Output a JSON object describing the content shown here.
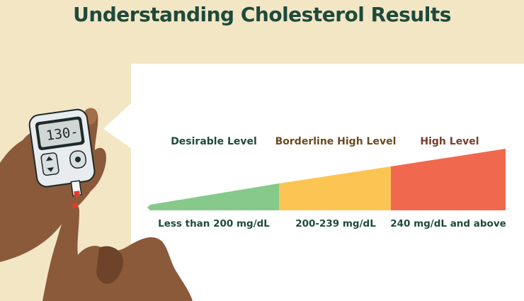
{
  "title": "Understanding Cholesterol Results",
  "meter": {
    "reading": "130-"
  },
  "levels": [
    {
      "label": "Desirable Level",
      "range": "Less than 200 mg/dL",
      "color": "#86c98b",
      "label_color": "#1e4a3c"
    },
    {
      "label": "Borderline High Level",
      "range": "200-239 mg/dL",
      "color": "#fcc553",
      "label_color": "#6b4a1e"
    },
    {
      "label": "High Level",
      "range": "240 mg/dL and above",
      "color": "#f0694e",
      "label_color": "#7a3a2a"
    }
  ],
  "colors": {
    "background": "#f3e6c4",
    "title": "#1e4a3c",
    "skin": "#8a5a3b",
    "skin_dark": "#6e4329"
  }
}
